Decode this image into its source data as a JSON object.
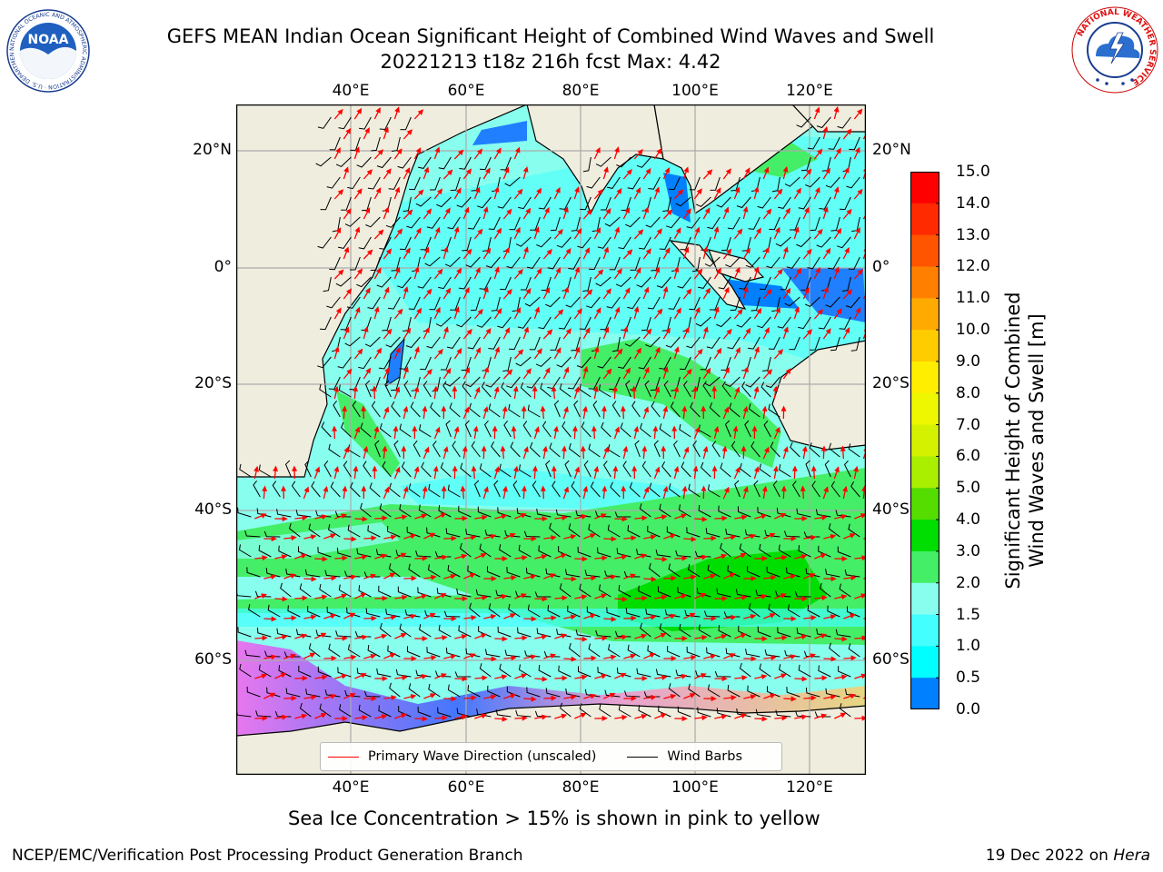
{
  "title": {
    "line1": "GEFS MEAN Indian Ocean Significant Height of Combined Wind Waves and Swell",
    "line2": "20221213 t18z 216h fcst   Max: 4.42"
  },
  "map": {
    "lon_ticks": [
      "40°E",
      "60°E",
      "80°E",
      "100°E",
      "120°E"
    ],
    "lat_ticks": [
      "20°N",
      "0°",
      "20°S",
      "40°S",
      "60°S"
    ],
    "lon_range": [
      20,
      130
    ],
    "lat_range": [
      -78,
      28
    ],
    "land_color": "#efedde",
    "grid": true
  },
  "colorbar": {
    "label_line1": "Significant Height of Combined",
    "label_line2": "Wind Waves and Swell [m]",
    "ticks": [
      "15.0",
      "14.0",
      "13.0",
      "12.0",
      "11.0",
      "10.0",
      "9.0",
      "8.0",
      "7.0",
      "6.0",
      "5.0",
      "4.0",
      "3.0",
      "2.0",
      "1.5",
      "1.0",
      "0.5",
      "0.0"
    ],
    "colors": [
      "#ff0000",
      "#ff2a00",
      "#ff5500",
      "#ff8000",
      "#ffaa00",
      "#ffcc00",
      "#ffee00",
      "#eef700",
      "#d4f200",
      "#aaee00",
      "#55dd00",
      "#00dd00",
      "#44ee66",
      "#88ffee",
      "#44ffff",
      "#00ffff",
      "#0080ff",
      "#0000ff"
    ]
  },
  "legend": {
    "wave_direction": "Primary Wave Direction (unscaled)",
    "wind_barbs": "Wind Barbs",
    "wave_color": "#ff0000",
    "barb_color": "#000000"
  },
  "caption": "Sea Ice Concentration > 15% is shown in pink to yellow",
  "footer": {
    "left": "NCEP/EMC/Verification Post Processing Product Generation Branch",
    "right_date": "19 Dec 2022 on",
    "right_machine": "Hera"
  },
  "logos": {
    "noaa_text": "NOAA",
    "noaa_ring": "NATIONAL OCEANIC AND ATMOSPHERIC ADMINISTRATION · U.S. DEPARTMENT OF COMMERCE",
    "nws_ring": "NATIONAL WEATHER SERVICE"
  }
}
